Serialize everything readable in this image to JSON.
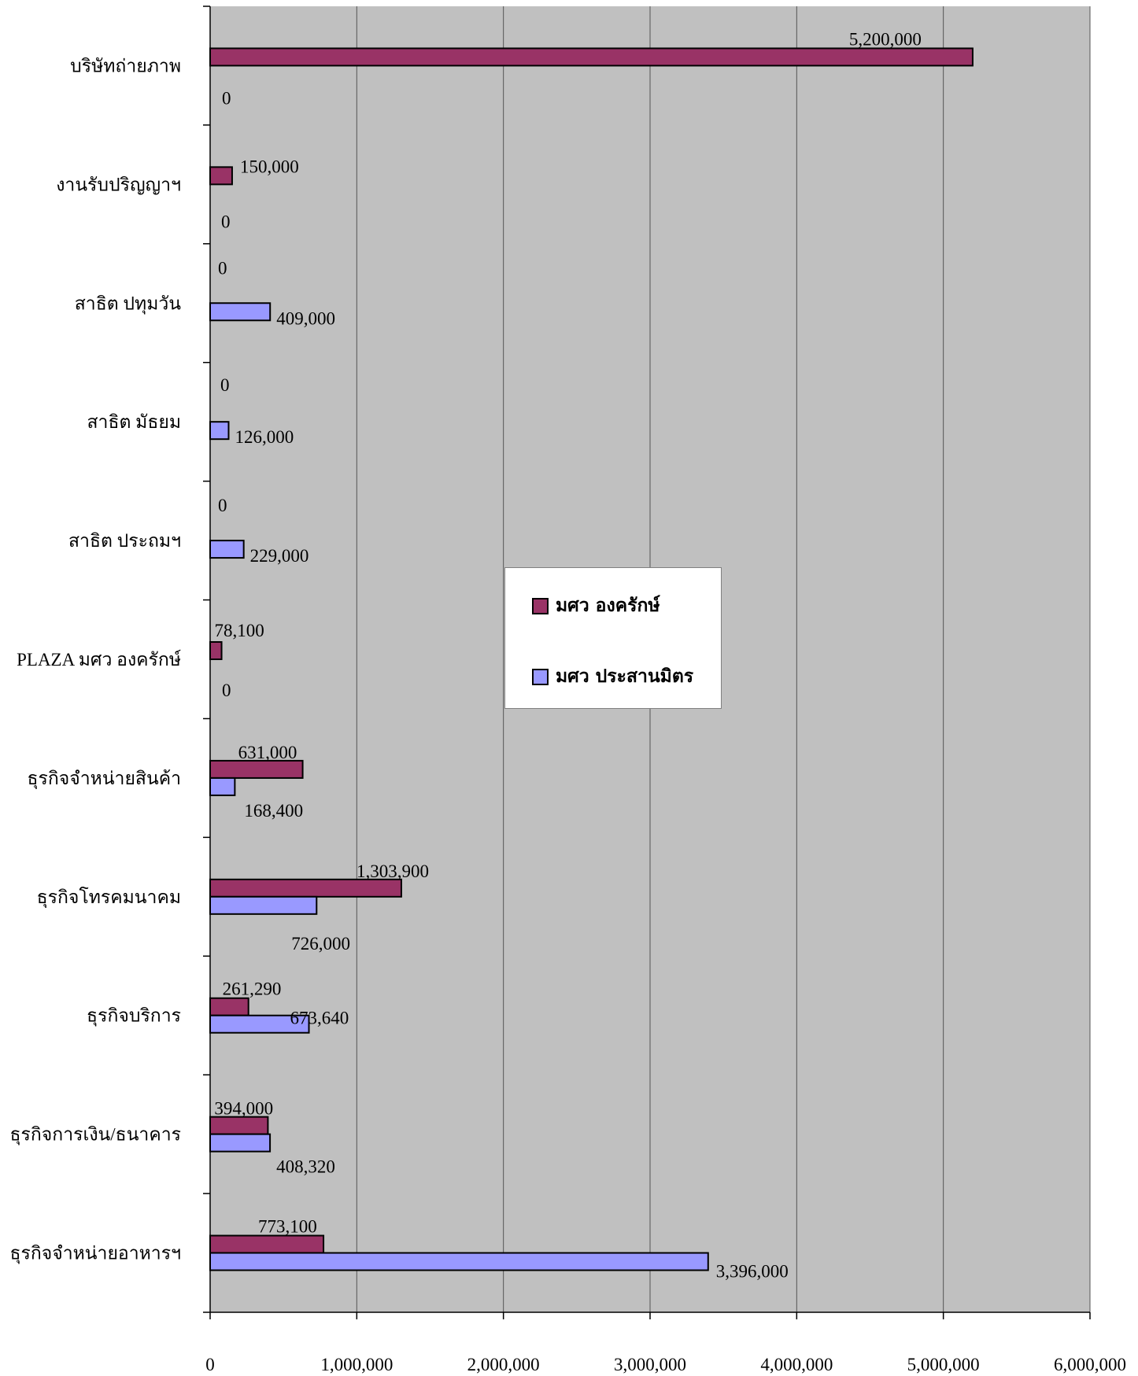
{
  "chart_data": {
    "type": "bar",
    "orientation": "horizontal",
    "categories": [
      "บริษัทถ่ายภาพ",
      "งานรับปริญญาฯ",
      "สาธิต ปทุมวัน",
      "สาธิต มัธยม",
      "สาธิต ประถมฯ",
      "PLAZA มศว องครักษ์",
      "ธุรกิจจำหน่ายสินค้า",
      "ธุรกิจโทรคมนาคม",
      "ธุรกิจบริการ",
      "ธุรกิจการเงิน/ธนาคาร",
      "ธุรกิจจำหน่ายอาหารฯ"
    ],
    "series": [
      {
        "name": "มศว องครักษ์",
        "color": "#993366",
        "values": [
          5200000,
          150000,
          0,
          0,
          0,
          78100,
          631000,
          1303900,
          261290,
          394000,
          773100
        ],
        "labels": [
          "5,200,000",
          "150,000",
          "0",
          "0",
          "0",
          "78,100",
          "631,000",
          "1,303,900",
          "261,290",
          "394,000",
          "773,100"
        ]
      },
      {
        "name": "มศว ประสานมิตร",
        "color": "#9999ff",
        "values": [
          0,
          0,
          409000,
          126000,
          229000,
          0,
          168400,
          726000,
          673640,
          408320,
          3396000
        ],
        "labels": [
          "0",
          "0",
          "409,000",
          "126,000",
          "229,000",
          "0",
          "168,400",
          "726,000",
          "673,640",
          "408,320",
          "3,396,000"
        ]
      }
    ],
    "xlim": [
      0,
      6000000
    ],
    "x_ticks": [
      0,
      1000000,
      2000000,
      3000000,
      4000000,
      5000000,
      6000000
    ],
    "x_tick_labels": [
      "0",
      "1,000,000",
      "2,000,000",
      "3,000,000",
      "4,000,000",
      "5,000,000",
      "6,000,000"
    ],
    "grid": true,
    "plot_background": "#c0c0c0",
    "legend_position": "center"
  }
}
